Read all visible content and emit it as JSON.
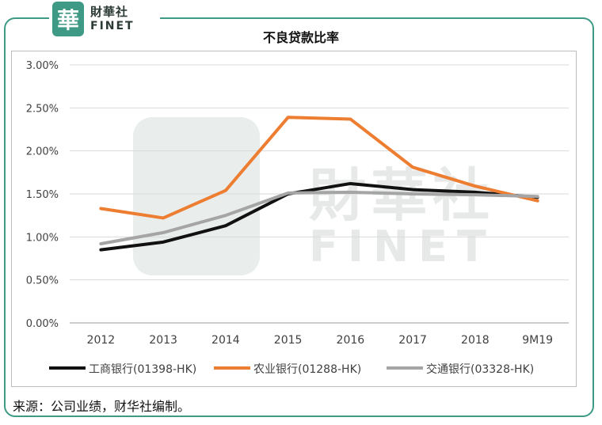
{
  "logo": {
    "cn": "財華社",
    "en": "FINET",
    "mark": "華"
  },
  "watermark": {
    "cn": "財華社",
    "en": "FINET"
  },
  "source": "来源：公司业绩，财华社编制。",
  "chart_data": {
    "type": "line",
    "title": "不良贷款比率",
    "xlabel": "",
    "ylabel": "",
    "categories": [
      "2012",
      "2013",
      "2014",
      "2015",
      "2016",
      "2017",
      "2018",
      "9M19"
    ],
    "ylim": [
      0,
      3.0
    ],
    "yticks": [
      0,
      0.5,
      1.0,
      1.5,
      2.0,
      2.5,
      3.0
    ],
    "ytick_labels": [
      "0.00%",
      "0.50%",
      "1.00%",
      "1.50%",
      "2.00%",
      "2.50%",
      "3.00%"
    ],
    "grid": true,
    "legend_position": "bottom",
    "series": [
      {
        "name": "工商银行(01398-HK)",
        "color": "#111111",
        "values": [
          0.85,
          0.94,
          1.13,
          1.5,
          1.62,
          1.55,
          1.52,
          1.46
        ]
      },
      {
        "name": "农业银行(01288-HK)",
        "color": "#ed7d31",
        "values": [
          1.33,
          1.22,
          1.54,
          2.39,
          2.37,
          1.81,
          1.59,
          1.42
        ]
      },
      {
        "name": "交通银行(03328-HK)",
        "color": "#a5a5a5",
        "values": [
          0.92,
          1.05,
          1.25,
          1.51,
          1.52,
          1.5,
          1.49,
          1.47
        ]
      }
    ]
  }
}
